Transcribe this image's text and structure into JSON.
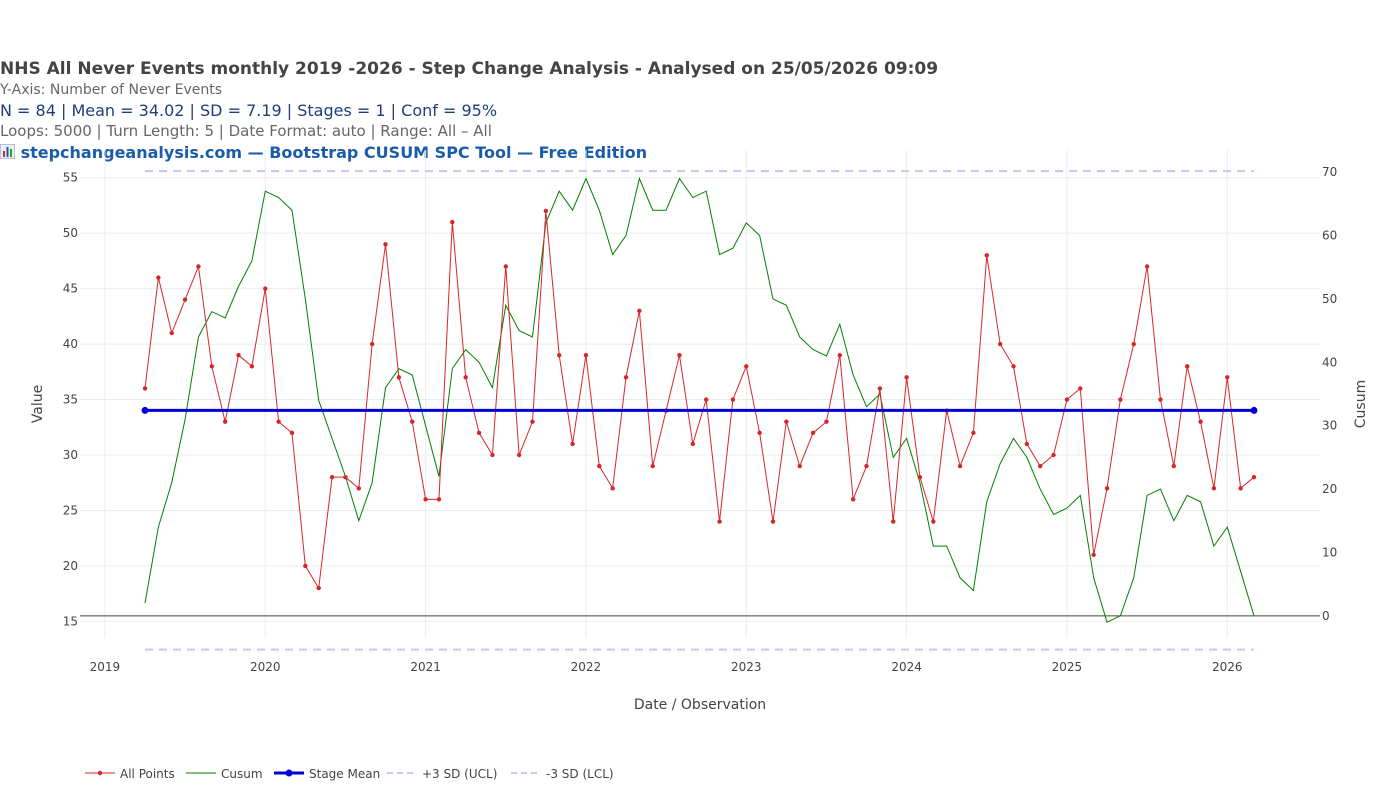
{
  "header": {
    "title": "NHS All Never Events monthly  2019 -2026 - Step Change Analysis - Analysed on 25/05/2026 09:09",
    "yaxis_text": "Y-Axis: Number of Never Events",
    "stats_text": "N = 84  |  Mean = 34.02  |  SD = 7.19  |  Stages = 1  |  Conf = 95%",
    "loops_text": "Loops: 5000  |  Turn Length: 5  |  Date Format: auto  |  Range: All – All",
    "link_icon": "bar-chart-icon",
    "link_text": "stepchangeanalysis.com — Bootstrap CUSUM SPC Tool — Free Edition"
  },
  "chart_data": {
    "type": "line",
    "xlabel": "Date / Observation",
    "ylabel": "Value",
    "y2label": "Cusum",
    "x_tick_labels": [
      "2019",
      "2020",
      "2021",
      "2022",
      "2023",
      "2024",
      "2025",
      "2026"
    ],
    "y_ticks": [
      15,
      20,
      25,
      30,
      35,
      40,
      45,
      50,
      55
    ],
    "y2_ticks": [
      0,
      10,
      20,
      30,
      40,
      50,
      60,
      70
    ],
    "x_start": "2019-04",
    "x_end": "2026-03",
    "ylim": [
      13.5,
      57.5
    ],
    "y2lim": [
      -3.5,
      73.5
    ],
    "grid": true,
    "legend_position": "bottom",
    "mean": 34.02,
    "ucl": 55.59,
    "lcl": 12.45,
    "series": [
      {
        "name": "All Points",
        "color": "#d62728",
        "axis": "y",
        "values": [
          36,
          46,
          41,
          44,
          47,
          38,
          33,
          39,
          38,
          45,
          33,
          32,
          20,
          18,
          28,
          28,
          27,
          40,
          49,
          37,
          33,
          26,
          26,
          51,
          37,
          32,
          30,
          47,
          30,
          33,
          52,
          39,
          31,
          39,
          29,
          27,
          37,
          43,
          29,
          34,
          39,
          31,
          35,
          24,
          35,
          38,
          32,
          24,
          33,
          29,
          32,
          33,
          39,
          26,
          29,
          36,
          24,
          37,
          28,
          24,
          34,
          29,
          32,
          48,
          40,
          38,
          31,
          29,
          30,
          35,
          36,
          21,
          27,
          35,
          40,
          47,
          35,
          29,
          38,
          33,
          27,
          37,
          27,
          28
        ]
      },
      {
        "name": "Cusum",
        "color": "#008000",
        "axis": "y2",
        "values": [
          2.0,
          14.0,
          21.0,
          31.0,
          44.0,
          48.0,
          47.0,
          52.0,
          56.0,
          67.0,
          66.0,
          64.0,
          50.0,
          34.0,
          28.0,
          22.0,
          15.0,
          21.0,
          36.0,
          39.0,
          38.0,
          30.0,
          22.0,
          39.0,
          42.0,
          40.0,
          36.0,
          49.0,
          45.0,
          44.0,
          62.0,
          67.0,
          64.0,
          69.0,
          64.0,
          57.0,
          60.0,
          69.0,
          64.0,
          64.0,
          69.0,
          66.0,
          67.0,
          57.0,
          58.0,
          62.0,
          60.0,
          50.0,
          49.0,
          44.0,
          42.0,
          41.0,
          46.0,
          38.0,
          33.0,
          35.0,
          25.0,
          28.0,
          21.0,
          11.0,
          11.0,
          6.0,
          4.0,
          18.0,
          24.0,
          28.0,
          25.0,
          20.0,
          16.0,
          17.0,
          19.0,
          6.0,
          -1.0,
          0.0,
          6.0,
          19.0,
          20.0,
          15.0,
          19.0,
          18.0,
          11.0,
          14.0,
          7.0,
          0.0
        ]
      }
    ],
    "legend": [
      {
        "label": "All Points",
        "style": "line-marker",
        "color": "#d62728"
      },
      {
        "label": "Cusum",
        "style": "line",
        "color": "#008000"
      },
      {
        "label": "Stage Mean",
        "style": "thick-marker",
        "color": "#0000d8"
      },
      {
        "label": "+3 SD (UCL)",
        "style": "dash",
        "color": "#c8c8f4"
      },
      {
        "label": "-3 SD (LCL)",
        "style": "dash",
        "color": "#c8c8f4"
      }
    ]
  }
}
